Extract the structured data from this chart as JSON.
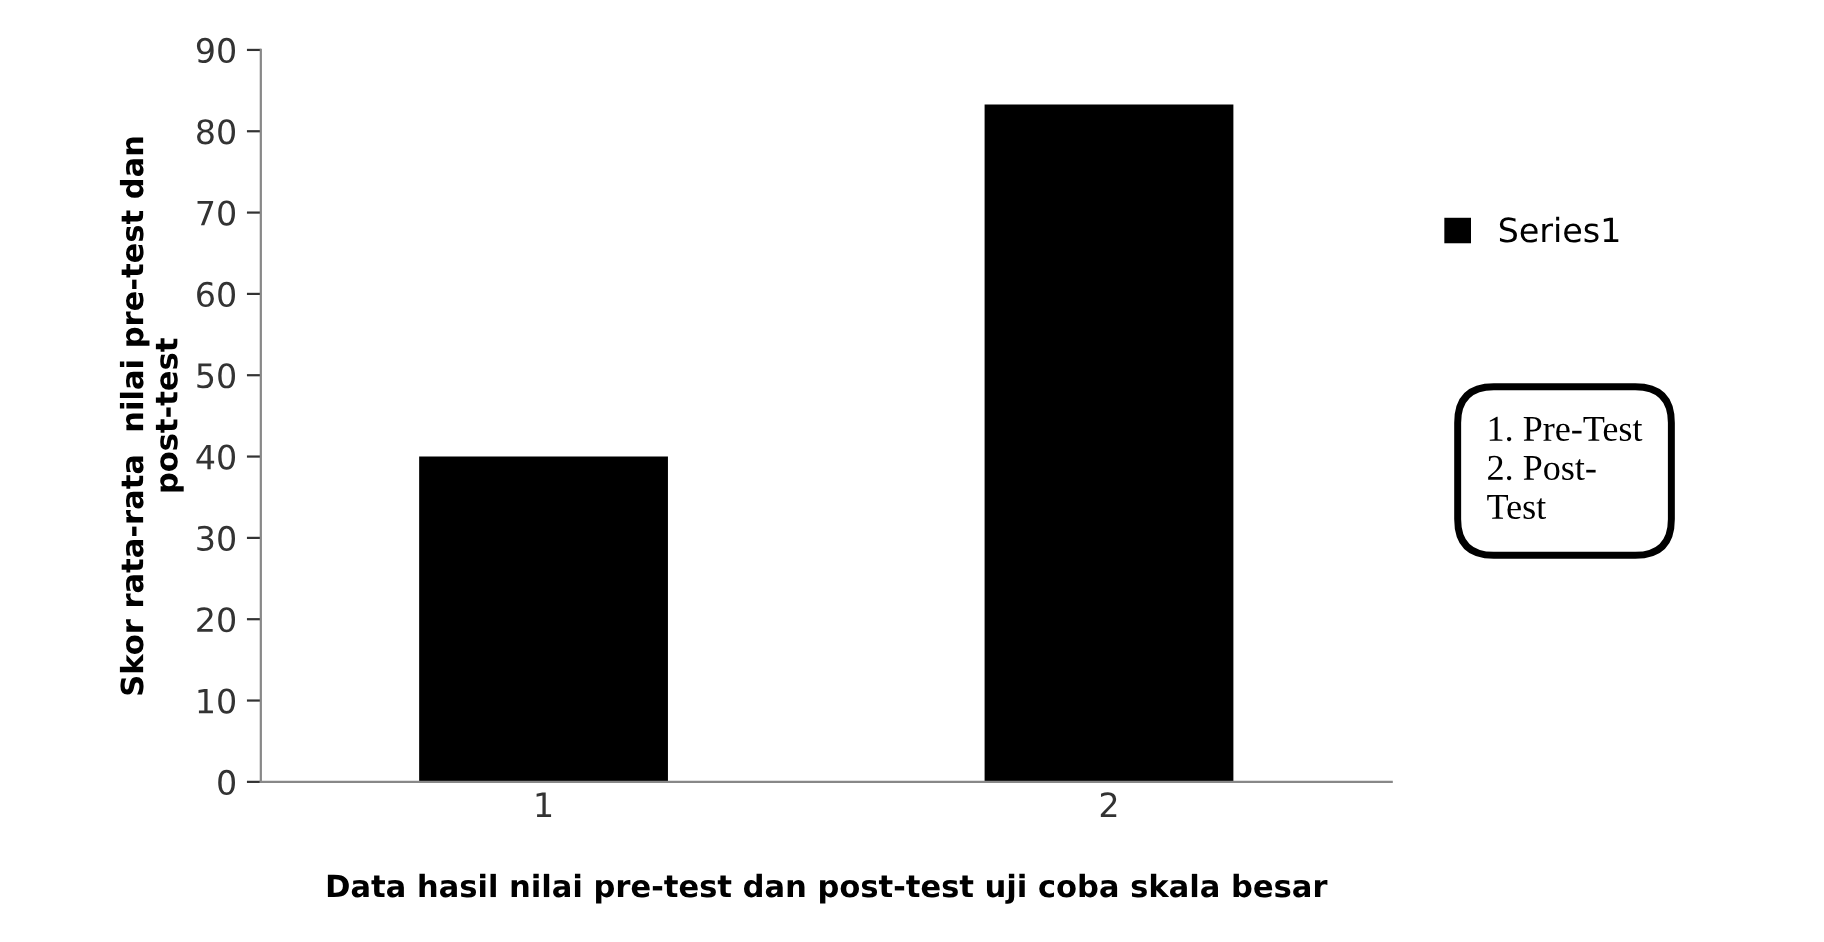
{
  "chart_data": {
    "type": "bar",
    "xlabel": "Data hasil nilai pre-test dan post-test uji coba skala besar",
    "ylabel": "Skor rata-rata  nilai pre-test dan\npost-test",
    "categories": [
      "1",
      "2"
    ],
    "series": [
      {
        "name": "Series1",
        "color": "#000000",
        "values": [
          40,
          83.3
        ]
      }
    ],
    "ylim": [
      0,
      90
    ],
    "yticks": [
      0,
      10,
      20,
      30,
      40,
      50,
      60,
      70,
      80,
      90
    ],
    "grid": false,
    "legend": "right",
    "annotations": [
      "1. Pre-Test\n2. Post-\nTest"
    ]
  }
}
